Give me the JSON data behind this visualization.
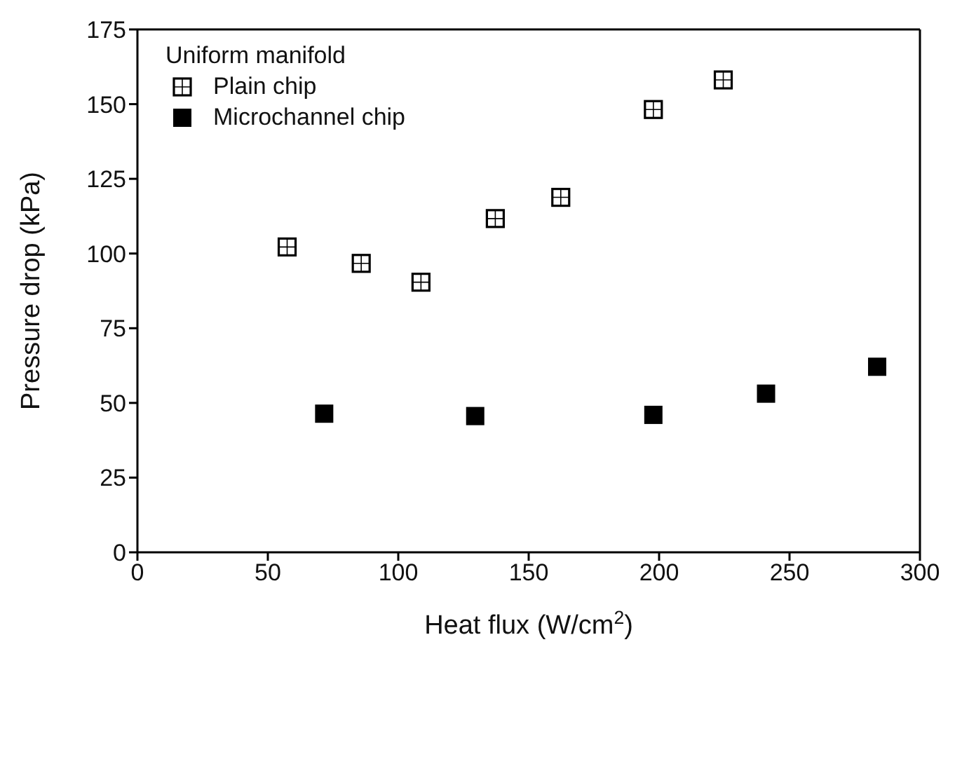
{
  "chart_data": {
    "type": "scatter",
    "xlabel": "Heat flux (W/cm$^{2}$)",
    "ylabel": "Pressure drop (kPa)",
    "legend_title": "Uniform manifold",
    "xlim": [
      0,
      300
    ],
    "xticks": [
      0,
      50,
      100,
      150,
      200,
      250,
      300
    ],
    "ylim": [
      0,
      175
    ],
    "yticks": [
      0,
      25,
      50,
      75,
      100,
      125,
      150,
      175
    ],
    "grid": false,
    "legend": "top left",
    "marker": "square",
    "series": [
      {
        "name": "Plain chip",
        "color": "#000000",
        "x": [
          57.4,
          85.8,
          108.7,
          137.2,
          162.3,
          197.8,
          224.6
        ],
        "values": [
          102.2,
          96.7,
          90.4,
          111.7,
          118.8,
          148.2,
          158.1
        ]
      },
      {
        "name": "Microchannel chip",
        "color": "#000000",
        "x": [
          71.6,
          129.5,
          197.8,
          241,
          283.6
        ],
        "values": [
          46.4,
          45.6,
          46,
          53.1,
          62.1
        ]
      }
    ]
  }
}
